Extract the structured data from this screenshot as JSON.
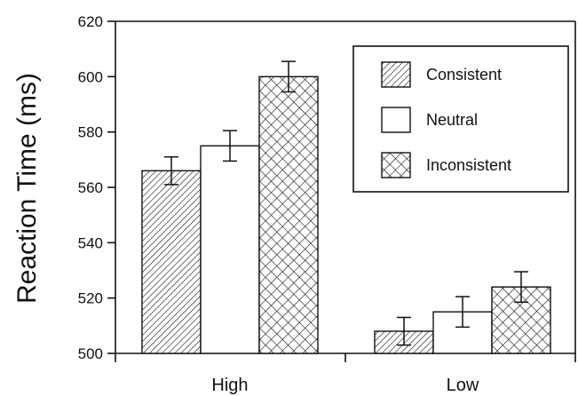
{
  "chart_data": {
    "type": "bar",
    "title": "",
    "xlabel": "",
    "ylabel": "Reaction Time (ms)",
    "ylim": [
      500,
      620
    ],
    "yticks": [
      500,
      520,
      540,
      560,
      580,
      600,
      620
    ],
    "categories": [
      "High",
      "Low"
    ],
    "series": [
      {
        "name": "Consistent",
        "pattern": "diagonal-hatch",
        "values": [
          566,
          508
        ],
        "errors": [
          5,
          5
        ]
      },
      {
        "name": "Neutral",
        "pattern": "none",
        "values": [
          575,
          515
        ],
        "errors": [
          5.5,
          5.5
        ]
      },
      {
        "name": "Inconsistent",
        "pattern": "cross-hatch",
        "values": [
          600,
          524
        ],
        "errors": [
          5.5,
          5.5
        ]
      }
    ],
    "legend_position": "top-right",
    "grid": false,
    "colors": {
      "bar_stroke": "#111111",
      "fill": "#ffffff"
    }
  }
}
